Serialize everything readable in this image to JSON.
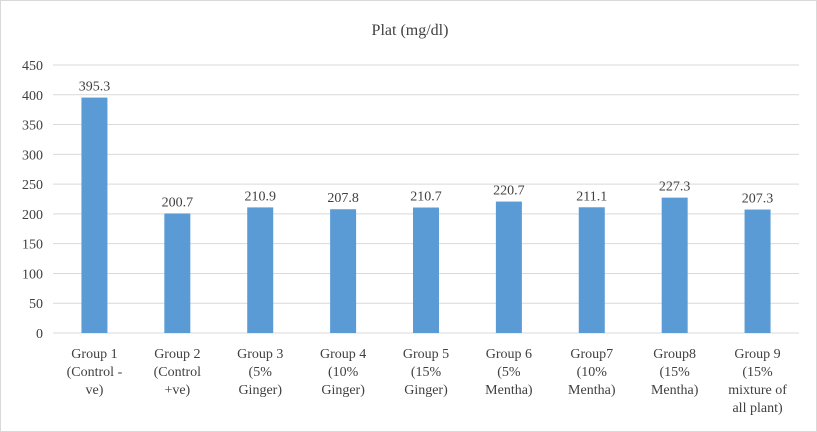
{
  "chart_data": {
    "type": "bar",
    "title": "Plat (mg/dl)",
    "categories": [
      [
        "Group 1",
        "(Control -",
        "ve)"
      ],
      [
        "Group 2",
        "(Control",
        "+ve)"
      ],
      [
        "Group 3",
        "(5%",
        "Ginger)"
      ],
      [
        "Group 4",
        "(10%",
        "Ginger)"
      ],
      [
        "Group 5",
        "(15%",
        "Ginger)"
      ],
      [
        "Group 6",
        "(5%",
        "Mentha)"
      ],
      [
        "Group7",
        "(10%",
        "Mentha)"
      ],
      [
        "Group8",
        "(15%",
        "Mentha)"
      ],
      [
        "Group 9",
        "(15%",
        "mixture of",
        "all plant)"
      ]
    ],
    "values": [
      395.3,
      200.7,
      210.9,
      207.8,
      210.7,
      220.7,
      211.1,
      227.3,
      207.3
    ],
    "value_labels": [
      "395.3",
      "200.7",
      "210.9",
      "207.8",
      "210.7",
      "220.7",
      "211.1",
      "227.3",
      "207.3"
    ],
    "y_ticks": [
      "0",
      "50",
      "100",
      "150",
      "200",
      "250",
      "300",
      "350",
      "400",
      "450"
    ],
    "ylim": [
      0,
      450
    ],
    "grid": true,
    "legend": "none",
    "bar_color": "#5b9bd5",
    "grid_color": "#d9d9d9",
    "text_color": "#404040"
  }
}
